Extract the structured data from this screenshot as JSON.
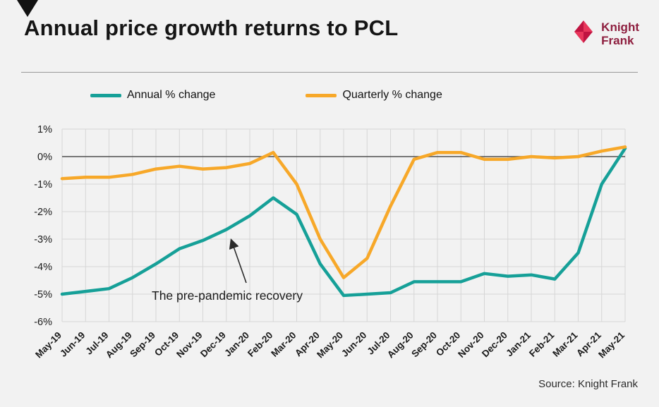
{
  "header": {
    "title": "Annual price growth returns to PCL",
    "logo": {
      "line1": "Knight",
      "line2": "Frank",
      "icon_color_light": "#E8365B",
      "icon_color_dark": "#C01441",
      "text_color": "#8E1F3F"
    }
  },
  "footer": {
    "source": "Source: Knight Frank"
  },
  "chart_data": {
    "type": "line",
    "title": "Annual price growth returns to PCL",
    "categories": [
      "May-19",
      "Jun-19",
      "Jul-19",
      "Aug-19",
      "Sep-19",
      "Oct-19",
      "Nov-19",
      "Dec-19",
      "Jan-20",
      "Feb-20",
      "Mar-20",
      "Apr-20",
      "May-20",
      "Jun-20",
      "Jul-20",
      "Aug-20",
      "Sep-20",
      "Oct-20",
      "Nov-20",
      "Dec-20",
      "Jan-21",
      "Feb-21",
      "Mar-21",
      "Apr-21",
      "May-21"
    ],
    "series": [
      {
        "name": "Annual % change",
        "color": "#16A098",
        "values": [
          -5.0,
          -4.9,
          -4.8,
          -4.4,
          -3.9,
          -3.35,
          -3.05,
          -2.65,
          -2.15,
          -1.5,
          -2.1,
          -3.9,
          -5.05,
          -5.0,
          -4.95,
          -4.55,
          -4.55,
          -4.55,
          -4.25,
          -4.35,
          -4.3,
          -4.45,
          -3.5,
          -1.0,
          0.3
        ]
      },
      {
        "name": "Quarterly % change",
        "color": "#F7A829",
        "values": [
          -0.8,
          -0.75,
          -0.75,
          -0.65,
          -0.45,
          -0.35,
          -0.45,
          -0.4,
          -0.25,
          0.15,
          -1.0,
          -3.0,
          -4.4,
          -3.7,
          -1.8,
          -0.1,
          0.15,
          0.15,
          -0.1,
          -0.1,
          0.0,
          -0.05,
          0.0,
          0.2,
          0.35
        ]
      }
    ],
    "ylim": [
      -6,
      1
    ],
    "ytick_step": 1,
    "ytick_suffix": "%",
    "grid": true,
    "legend_position": "top",
    "annotation": {
      "text": "The pre-pandemic recovery"
    }
  }
}
